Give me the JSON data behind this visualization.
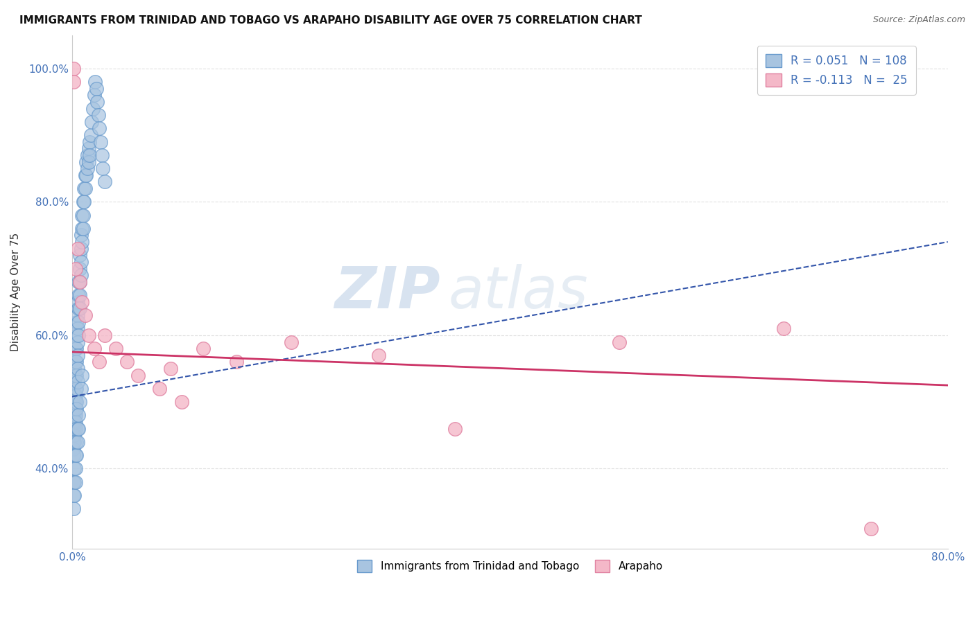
{
  "title": "IMMIGRANTS FROM TRINIDAD AND TOBAGO VS ARAPAHO DISABILITY AGE OVER 75 CORRELATION CHART",
  "source": "Source: ZipAtlas.com",
  "ylabel": "Disability Age Over 75",
  "xlim": [
    0.0,
    0.8
  ],
  "ylim": [
    0.28,
    1.05
  ],
  "xticks": [
    0.0,
    0.1,
    0.2,
    0.3,
    0.4,
    0.5,
    0.6,
    0.7,
    0.8
  ],
  "xticklabels": [
    "0.0%",
    "",
    "",
    "",
    "",
    "",
    "",
    "",
    "80.0%"
  ],
  "yticks": [
    0.4,
    0.6,
    0.8,
    1.0
  ],
  "yticklabels": [
    "40.0%",
    "60.0%",
    "80.0%",
    "100.0%"
  ],
  "blue_R": 0.051,
  "blue_N": 108,
  "pink_R": -0.113,
  "pink_N": 25,
  "blue_color": "#a8c4e0",
  "pink_color": "#f4b8c8",
  "blue_edge": "#6699cc",
  "pink_edge": "#e080a0",
  "trend_blue_color": "#3355aa",
  "trend_pink_color": "#cc3366",
  "tick_color": "#4472b8",
  "watermark_color": "#c8d8e8",
  "grid_color": "#e0e0e0",
  "blue_scatter_x": [
    0.001,
    0.001,
    0.001,
    0.001,
    0.001,
    0.001,
    0.001,
    0.001,
    0.001,
    0.001,
    0.002,
    0.002,
    0.002,
    0.002,
    0.002,
    0.002,
    0.002,
    0.002,
    0.002,
    0.002,
    0.003,
    0.003,
    0.003,
    0.003,
    0.003,
    0.003,
    0.003,
    0.003,
    0.003,
    0.003,
    0.004,
    0.004,
    0.004,
    0.004,
    0.004,
    0.004,
    0.004,
    0.004,
    0.005,
    0.005,
    0.005,
    0.005,
    0.005,
    0.005,
    0.005,
    0.006,
    0.006,
    0.006,
    0.006,
    0.006,
    0.007,
    0.007,
    0.007,
    0.007,
    0.007,
    0.008,
    0.008,
    0.008,
    0.008,
    0.009,
    0.009,
    0.009,
    0.01,
    0.01,
    0.01,
    0.011,
    0.011,
    0.012,
    0.012,
    0.013,
    0.013,
    0.014,
    0.014,
    0.015,
    0.015,
    0.016,
    0.016,
    0.017,
    0.018,
    0.019,
    0.02,
    0.021,
    0.022,
    0.023,
    0.024,
    0.025,
    0.026,
    0.027,
    0.028,
    0.03,
    0.001,
    0.001,
    0.001,
    0.002,
    0.002,
    0.002,
    0.003,
    0.003,
    0.003,
    0.004,
    0.004,
    0.005,
    0.005,
    0.006,
    0.006,
    0.007,
    0.008,
    0.009
  ],
  "blue_scatter_y": [
    0.52,
    0.5,
    0.49,
    0.48,
    0.47,
    0.46,
    0.45,
    0.44,
    0.43,
    0.42,
    0.55,
    0.53,
    0.51,
    0.5,
    0.49,
    0.48,
    0.47,
    0.46,
    0.45,
    0.44,
    0.58,
    0.56,
    0.54,
    0.52,
    0.51,
    0.5,
    0.49,
    0.48,
    0.47,
    0.46,
    0.62,
    0.6,
    0.58,
    0.56,
    0.54,
    0.52,
    0.5,
    0.49,
    0.65,
    0.63,
    0.61,
    0.59,
    0.57,
    0.55,
    0.53,
    0.68,
    0.66,
    0.64,
    0.62,
    0.6,
    0.72,
    0.7,
    0.68,
    0.66,
    0.64,
    0.75,
    0.73,
    0.71,
    0.69,
    0.78,
    0.76,
    0.74,
    0.8,
    0.78,
    0.76,
    0.82,
    0.8,
    0.84,
    0.82,
    0.86,
    0.84,
    0.87,
    0.85,
    0.88,
    0.86,
    0.89,
    0.87,
    0.9,
    0.92,
    0.94,
    0.96,
    0.98,
    0.97,
    0.95,
    0.93,
    0.91,
    0.89,
    0.87,
    0.85,
    0.83,
    0.38,
    0.36,
    0.34,
    0.4,
    0.38,
    0.36,
    0.42,
    0.4,
    0.38,
    0.44,
    0.42,
    0.46,
    0.44,
    0.48,
    0.46,
    0.5,
    0.52,
    0.54
  ],
  "pink_scatter_x": [
    0.001,
    0.001,
    0.003,
    0.005,
    0.007,
    0.009,
    0.012,
    0.015,
    0.02,
    0.025,
    0.03,
    0.04,
    0.05,
    0.06,
    0.08,
    0.09,
    0.1,
    0.12,
    0.15,
    0.2,
    0.28,
    0.35,
    0.5,
    0.65,
    0.73
  ],
  "pink_scatter_y": [
    1.0,
    0.98,
    0.7,
    0.73,
    0.68,
    0.65,
    0.63,
    0.6,
    0.58,
    0.56,
    0.6,
    0.58,
    0.56,
    0.54,
    0.52,
    0.55,
    0.5,
    0.58,
    0.56,
    0.59,
    0.57,
    0.46,
    0.59,
    0.61,
    0.31
  ],
  "blue_trend_x": [
    0.0,
    0.8
  ],
  "blue_trend_y": [
    0.508,
    0.74
  ],
  "pink_trend_x": [
    0.0,
    0.8
  ],
  "pink_trend_y": [
    0.575,
    0.525
  ]
}
